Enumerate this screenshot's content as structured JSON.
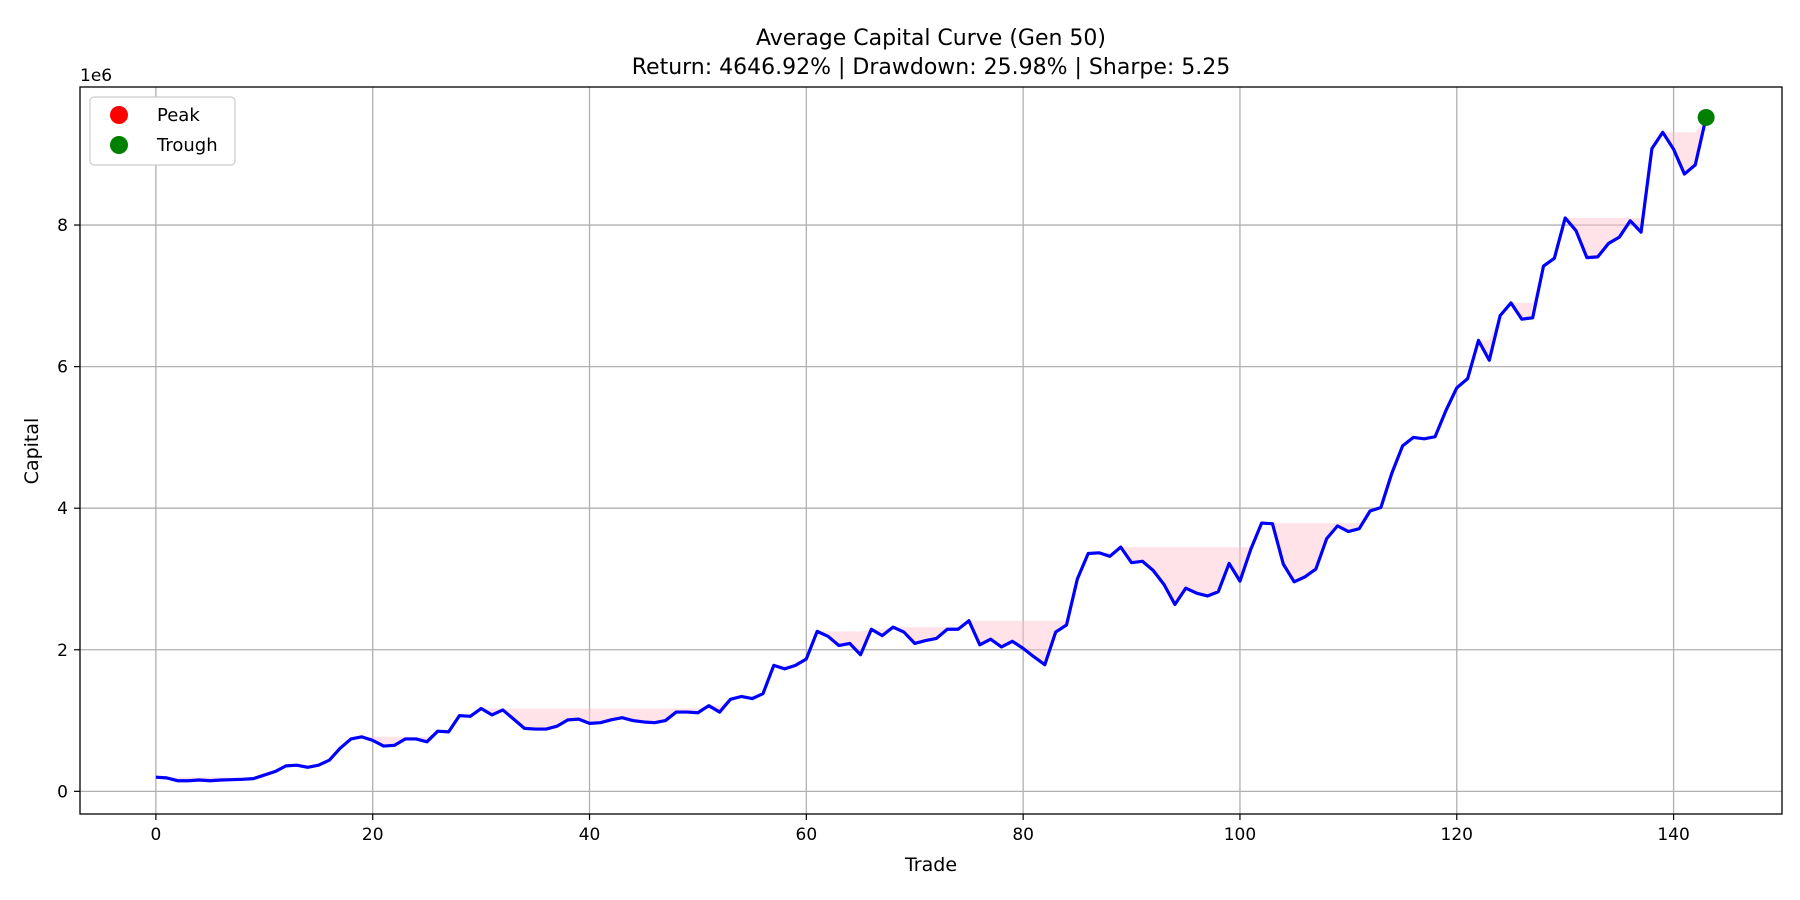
{
  "chart_data": {
    "type": "line",
    "title": "Average Capital Curve (Gen 50)",
    "subtitle": "Return: 4646.92% | Drawdown: 25.98% | Sharpe: 5.25",
    "xlabel": "Trade",
    "ylabel": "Capital",
    "y_multiplier_label": "1e6",
    "xlim": [
      -7,
      150
    ],
    "ylim": [
      -0.32,
      9.95
    ],
    "xticks": [
      0,
      20,
      40,
      60,
      80,
      100,
      120,
      140
    ],
    "yticks": [
      0,
      2,
      4,
      6,
      8
    ],
    "grid": true,
    "legend_position": "top-left",
    "legend": [
      {
        "label": "Peak",
        "color": "#ff0000"
      },
      {
        "label": "Trough",
        "color": "#008000"
      }
    ],
    "line_color": "#0000ff",
    "drawdown_fill_color": "#ffc0cb",
    "series": [
      {
        "values": [
          0.2,
          0.19,
          0.15,
          0.15,
          0.16,
          0.15,
          0.16,
          0.165,
          0.17,
          0.18,
          0.23,
          0.28,
          0.36,
          0.37,
          0.34,
          0.37,
          0.44,
          0.61,
          0.74,
          0.77,
          0.72,
          0.64,
          0.65,
          0.74,
          0.74,
          0.7,
          0.85,
          0.84,
          1.07,
          1.06,
          1.17,
          1.08,
          1.15,
          1.02,
          0.89,
          0.88,
          0.88,
          0.92,
          1.01,
          1.02,
          0.96,
          0.97,
          1.01,
          1.04,
          1.0,
          0.98,
          0.97,
          1.0,
          1.12,
          1.12,
          1.11,
          1.21,
          1.12,
          1.3,
          1.34,
          1.31,
          1.38,
          1.78,
          1.73,
          1.78,
          1.87,
          2.26,
          2.19,
          2.06,
          2.09,
          1.93,
          2.29,
          2.2,
          2.32,
          2.25,
          2.09,
          2.13,
          2.16,
          2.29,
          2.29,
          2.41,
          2.07,
          2.15,
          2.04,
          2.12,
          2.02,
          1.9,
          1.79,
          2.25,
          2.35,
          3.0,
          3.36,
          3.37,
          3.32,
          3.45,
          3.23,
          3.25,
          3.12,
          2.92,
          2.64,
          2.87,
          2.8,
          2.76,
          2.82,
          3.22,
          2.97,
          3.42,
          3.79,
          3.78,
          3.21,
          2.96,
          3.03,
          3.14,
          3.57,
          3.75,
          3.67,
          3.71,
          3.96,
          4.01,
          4.49,
          4.88,
          5.0,
          4.98,
          5.01,
          5.38,
          5.7,
          5.83,
          6.37,
          6.09,
          6.72,
          6.9,
          6.67,
          6.69,
          7.42,
          7.53,
          8.1,
          7.92,
          7.54,
          7.55,
          7.74,
          7.83,
          8.06,
          7.9,
          9.08,
          9.31,
          9.07,
          8.72,
          8.85,
          9.52
        ]
      }
    ],
    "markers": [
      {
        "type": "trough",
        "x": 143,
        "y": 9.52
      }
    ]
  }
}
